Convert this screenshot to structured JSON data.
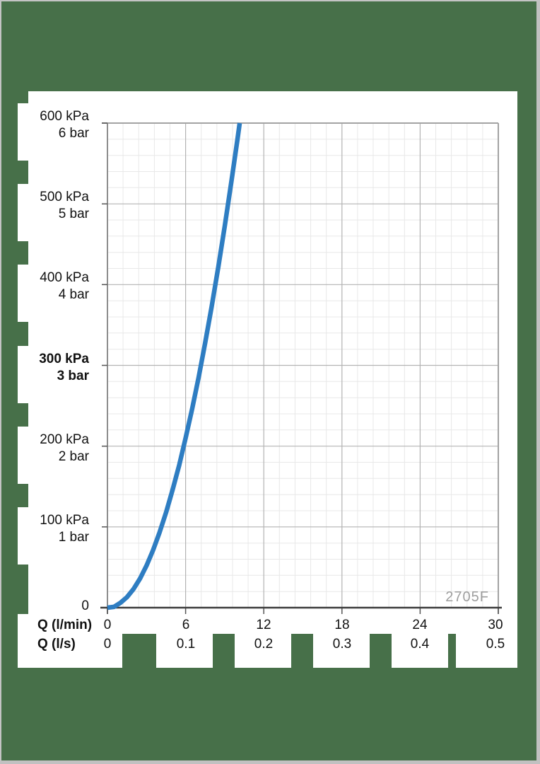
{
  "frame": {
    "background_color": "#477049",
    "border_color": "#C4C4C4",
    "panel_color": "#FFFFFF"
  },
  "chart_data": {
    "type": "line",
    "title": "",
    "watermark": "2705F",
    "x_axis": {
      "row1_label": "Q (l/min)",
      "row2_label": "Q (l/s)",
      "row1_ticks": [
        "0",
        "6",
        "12",
        "18",
        "24",
        "30"
      ],
      "row2_ticks": [
        "0",
        "0.1",
        "0.2",
        "0.3",
        "0.4",
        "0.5"
      ],
      "range_lmin": [
        0,
        30
      ],
      "major_step_lmin": 6,
      "minors_per_major": 5
    },
    "y_axis": {
      "labels": [
        {
          "kpa": "600 kPa",
          "bar": "6 bar",
          "value": 600,
          "bold": false
        },
        {
          "kpa": "500 kPa",
          "bar": "5 bar",
          "value": 500,
          "bold": false
        },
        {
          "kpa": "400 kPa",
          "bar": "4 bar",
          "value": 400,
          "bold": false
        },
        {
          "kpa": "300 kPa",
          "bar": "3 bar",
          "value": 300,
          "bold": true
        },
        {
          "kpa": "200 kPa",
          "bar": "2 bar",
          "value": 200,
          "bold": false
        },
        {
          "kpa": "100 kPa",
          "bar": "1 bar",
          "value": 100,
          "bold": false
        }
      ],
      "zero_label": "0",
      "range_kpa": [
        0,
        600
      ],
      "major_step_kpa": 100,
      "minors_per_major": 5
    },
    "grid": {
      "minor_color": "#E8E8E8",
      "major_color": "#B3B3B3",
      "frame_color": "#A3A3A3",
      "axis_color": "#3C3C3C",
      "legend_position": "none"
    },
    "series": [
      {
        "name": "flow-pressure-curve",
        "color": "#2E7DC2",
        "points_lmin_kpa": [
          [
            0,
            0
          ],
          [
            0.5,
            1
          ],
          [
            1,
            6
          ],
          [
            1.5,
            13
          ],
          [
            2,
            23
          ],
          [
            2.5,
            36
          ],
          [
            3,
            52
          ],
          [
            3.5,
            71
          ],
          [
            4,
            93
          ],
          [
            4.5,
            118
          ],
          [
            5,
            146
          ],
          [
            5.5,
            176
          ],
          [
            6,
            210
          ],
          [
            6.5,
            246
          ],
          [
            7,
            285
          ],
          [
            7.5,
            328
          ],
          [
            8,
            373
          ],
          [
            8.5,
            421
          ],
          [
            9,
            472
          ],
          [
            9.5,
            526
          ],
          [
            10,
            582
          ],
          [
            10.15,
            600
          ]
        ]
      }
    ]
  }
}
